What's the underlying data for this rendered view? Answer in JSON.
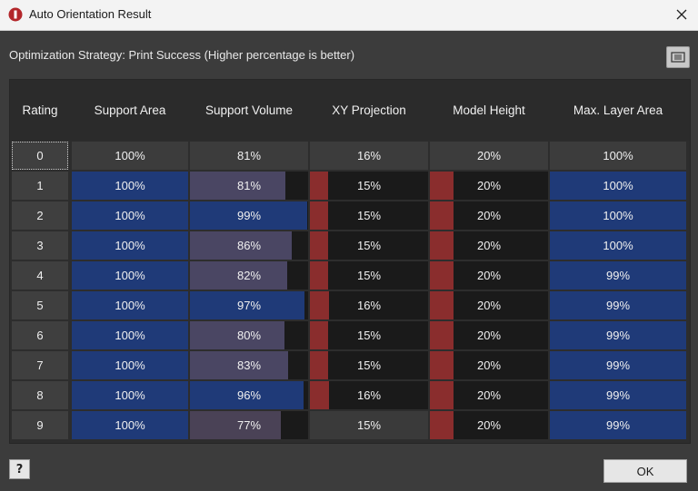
{
  "window": {
    "title": "Auto Orientation Result",
    "icon": "app-logo-icon",
    "close_icon": "close-icon"
  },
  "strategy_text": "Optimization Strategy: Print Success (Higher percentage is better)",
  "export_icon": "export-icon",
  "columns": [
    "Rating",
    "Support Area",
    "Support Volume",
    "XY Projection",
    "Model Height",
    "Max. Layer Area"
  ],
  "colors": {
    "blue": "#1f3a78",
    "purple": "#4a4663",
    "red": "#8a2d2d",
    "dark": "#1a1a1a",
    "base": "#3c3c3c"
  },
  "rows": [
    {
      "rating": "0",
      "support_area": "100%",
      "support_volume": "81%",
      "xy_projection": "16%",
      "model_height": "20%",
      "max_layer_area": "100%"
    },
    {
      "rating": "1",
      "support_area": "100%",
      "support_volume": "81%",
      "xy_projection": "15%",
      "model_height": "20%",
      "max_layer_area": "100%"
    },
    {
      "rating": "2",
      "support_area": "100%",
      "support_volume": "99%",
      "xy_projection": "15%",
      "model_height": "20%",
      "max_layer_area": "100%"
    },
    {
      "rating": "3",
      "support_area": "100%",
      "support_volume": "86%",
      "xy_projection": "15%",
      "model_height": "20%",
      "max_layer_area": "100%"
    },
    {
      "rating": "4",
      "support_area": "100%",
      "support_volume": "82%",
      "xy_projection": "15%",
      "model_height": "20%",
      "max_layer_area": "99%"
    },
    {
      "rating": "5",
      "support_area": "100%",
      "support_volume": "97%",
      "xy_projection": "16%",
      "model_height": "20%",
      "max_layer_area": "99%"
    },
    {
      "rating": "6",
      "support_area": "100%",
      "support_volume": "80%",
      "xy_projection": "15%",
      "model_height": "20%",
      "max_layer_area": "99%"
    },
    {
      "rating": "7",
      "support_area": "100%",
      "support_volume": "83%",
      "xy_projection": "15%",
      "model_height": "20%",
      "max_layer_area": "99%"
    },
    {
      "rating": "8",
      "support_area": "100%",
      "support_volume": "96%",
      "xy_projection": "16%",
      "model_height": "20%",
      "max_layer_area": "99%"
    },
    {
      "rating": "9",
      "support_area": "100%",
      "support_volume": "77%",
      "xy_projection": "15%",
      "model_height": "20%",
      "max_layer_area": "99%"
    }
  ],
  "help_label": "?",
  "ok_label": "OK"
}
